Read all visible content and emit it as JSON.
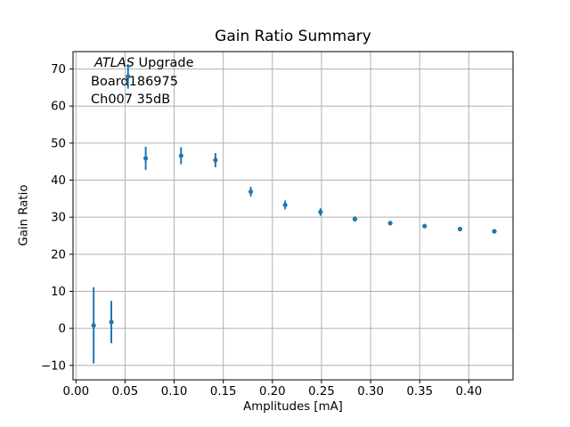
{
  "figure": {
    "background": "#ffffff"
  },
  "chart_data": {
    "type": "scatter",
    "title": "Gain Ratio Summary",
    "xlabel": "Amplitudes [mA]",
    "ylabel": "Gain Ratio",
    "annotation": {
      "experiment_italic": "ATLAS",
      "experiment_rest": " Upgrade",
      "board": "Board186975",
      "channel": "Ch007 35dB"
    },
    "series": [
      {
        "name": "gain-ratio-vs-amplitude",
        "marker": "circle",
        "color": "#1f77b4",
        "x": [
          0.018,
          0.036,
          0.053,
          0.071,
          0.107,
          0.142,
          0.178,
          0.213,
          0.249,
          0.284,
          0.32,
          0.355,
          0.391,
          0.426
        ],
        "y": [
          0.8,
          1.7,
          68.0,
          45.9,
          46.6,
          45.4,
          36.9,
          33.3,
          31.4,
          29.5,
          28.4,
          27.6,
          26.8,
          26.2
        ],
        "yerr": [
          10.3,
          5.7,
          3.3,
          3.1,
          2.3,
          1.9,
          1.3,
          1.2,
          1.0,
          0.7,
          0.6,
          0.5,
          0.5,
          0.5
        ]
      }
    ],
    "xlim": [
      -0.003,
      0.445
    ],
    "ylim": [
      -13.9,
      74.7
    ],
    "xticks": {
      "values": [
        0.0,
        0.05,
        0.1,
        0.15,
        0.2,
        0.25,
        0.3,
        0.35,
        0.4
      ],
      "labels": [
        "0.00",
        "0.05",
        "0.10",
        "0.15",
        "0.20",
        "0.25",
        "0.30",
        "0.35",
        "0.40"
      ]
    },
    "yticks": {
      "values": [
        -10,
        0,
        10,
        20,
        30,
        40,
        50,
        60,
        70
      ],
      "labels": [
        "−10",
        "0",
        "10",
        "20",
        "30",
        "40",
        "50",
        "60",
        "70"
      ]
    },
    "grid": true,
    "legend": "none",
    "colors": {
      "marker": "#1f77b4",
      "grid": "#b0b0b0",
      "spine": "#000000",
      "text": "#000000"
    }
  }
}
